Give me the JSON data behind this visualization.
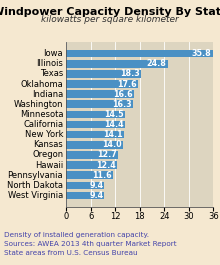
{
  "title": "Windpower Capacity Density By State",
  "subtitle": "kilowatts per square kilometer",
  "states": [
    "West Virginia",
    "North Dakota",
    "Pennsylvania",
    "Hawaii",
    "Oregon",
    "Kansas",
    "New York",
    "California",
    "Minnesota",
    "Washington",
    "Indiana",
    "Oklahoma",
    "Texas",
    "Illinois",
    "Iowa"
  ],
  "values": [
    9.4,
    9.4,
    11.6,
    12.4,
    12.7,
    14.0,
    14.1,
    14.4,
    14.5,
    16.3,
    16.6,
    17.6,
    18.3,
    24.8,
    35.8
  ],
  "bar_color": "#4a90c4",
  "label_color": "#ffffff",
  "footnote_color": "#4444aa",
  "background_color": "#f5e8d0",
  "plot_bg_color": "#ddd5c0",
  "xlim": [
    0,
    36
  ],
  "xticks": [
    0,
    6,
    12,
    18,
    24,
    30,
    36
  ],
  "footnote_line1": "Density of installed generation capacity.",
  "footnote_line2": "Sources: AWEA 2013 4th quarter Market Report",
  "footnote_line3": "State areas from U.S. Census Bureau",
  "title_fontsize": 8.0,
  "subtitle_fontsize": 6.5,
  "bar_label_fontsize": 5.8,
  "ytick_fontsize": 6.0,
  "xtick_fontsize": 6.0,
  "footnote_fontsize": 5.2
}
